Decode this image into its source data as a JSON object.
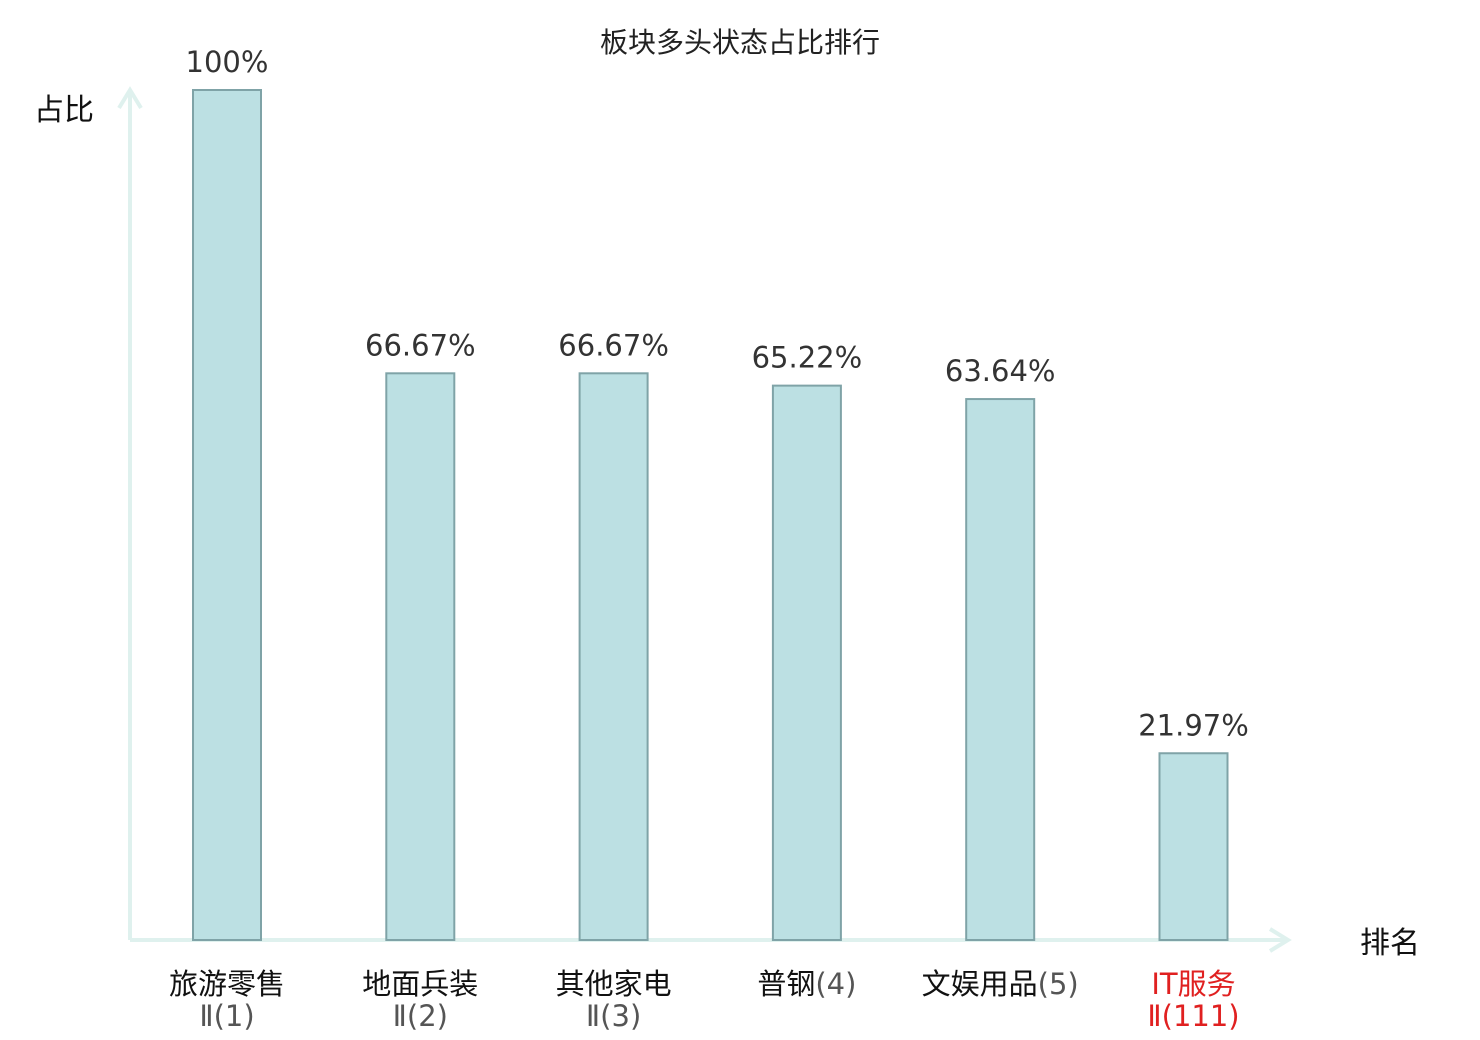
{
  "chart_data": {
    "type": "bar",
    "title": "板块多头状态占比排行",
    "ylabel": "占比",
    "xlabel": "排名",
    "ylim": [
      0,
      100
    ],
    "grid": false,
    "categories": [
      {
        "name": "旅游零售",
        "rank": "Ⅱ(1)",
        "highlight": false
      },
      {
        "name": "地面兵装",
        "rank": "Ⅱ(2)",
        "highlight": false
      },
      {
        "name": "其他家电",
        "rank": "Ⅱ(3)",
        "highlight": false
      },
      {
        "name": "普钢",
        "rank": "(4)",
        "highlight": false
      },
      {
        "name": "文娱用品",
        "rank": "(5)",
        "highlight": false
      },
      {
        "name": "IT服务",
        "rank": "Ⅱ(111)",
        "highlight": true
      }
    ],
    "values": [
      100,
      66.67,
      66.67,
      65.22,
      63.64,
      21.97
    ],
    "value_labels": [
      "100%",
      "66.67%",
      "66.67%",
      "65.22%",
      "63.64%",
      "21.97%"
    ],
    "colors": {
      "bar_fill": "#bce0e3",
      "bar_stroke": "#7fa3a7",
      "axis": "#dff1ee",
      "label": "#333333",
      "rank_gray": "#555555",
      "highlight": "#e02020"
    }
  }
}
